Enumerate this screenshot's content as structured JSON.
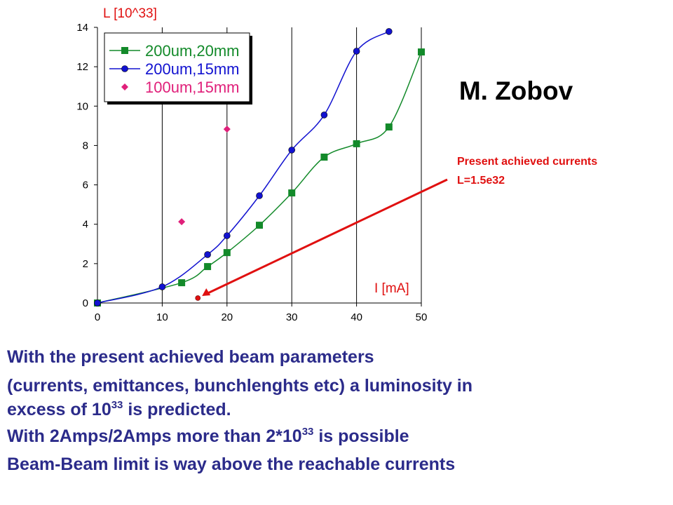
{
  "chart_data": {
    "type": "line",
    "y_label": "L [10^33]",
    "x_label": "I [mA]",
    "xlim": [
      0,
      50
    ],
    "xticks": [
      0,
      10,
      20,
      30,
      40,
      50
    ],
    "ylim": [
      0,
      14
    ],
    "yticks": [
      0,
      2,
      4,
      6,
      8,
      10,
      12,
      14
    ],
    "grid": "x",
    "series": [
      {
        "name": "200um,20mm",
        "color": "#138a2a",
        "marker": "square",
        "line": true,
        "x": [
          0,
          13,
          17,
          20,
          25,
          30,
          35,
          40,
          45,
          50
        ],
        "values": [
          0,
          1.03,
          1.85,
          2.56,
          3.95,
          5.59,
          7.41,
          8.09,
          8.94,
          12.75
        ]
      },
      {
        "name": "200um,15mm",
        "color": "#1212d0",
        "marker": "circle",
        "line": true,
        "x": [
          0,
          10,
          17,
          20,
          25,
          30,
          35,
          40,
          45
        ],
        "values": [
          0,
          0.82,
          2.46,
          3.42,
          5.45,
          7.77,
          9.55,
          12.79,
          13.79
        ]
      },
      {
        "name": "100um,15mm",
        "color": "#e0207a",
        "marker": "diamond",
        "line": false,
        "x": [
          13,
          20
        ],
        "values": [
          4.13,
          8.83
        ]
      }
    ],
    "annotation": {
      "lines": [
        "Present achieved currents",
        "L=1.5e32"
      ],
      "x": 15.5,
      "y": 0.25,
      "color": "#e01010"
    }
  },
  "author": "M. Zobov",
  "body": [
    {
      "before": "With the present achieved beam parameters"
    },
    {
      "before": "(currents, emittances, bunchlenghts etc) a luminosity in"
    },
    {
      "before": "excess of 10",
      "sup": "33",
      "after": " is predicted."
    },
    {
      "before": "With 2Amps/2Amps more than 2*10",
      "sup": "33",
      "after": " is possible"
    },
    {
      "before": "Beam-Beam limit is way above the reachable currents"
    }
  ]
}
